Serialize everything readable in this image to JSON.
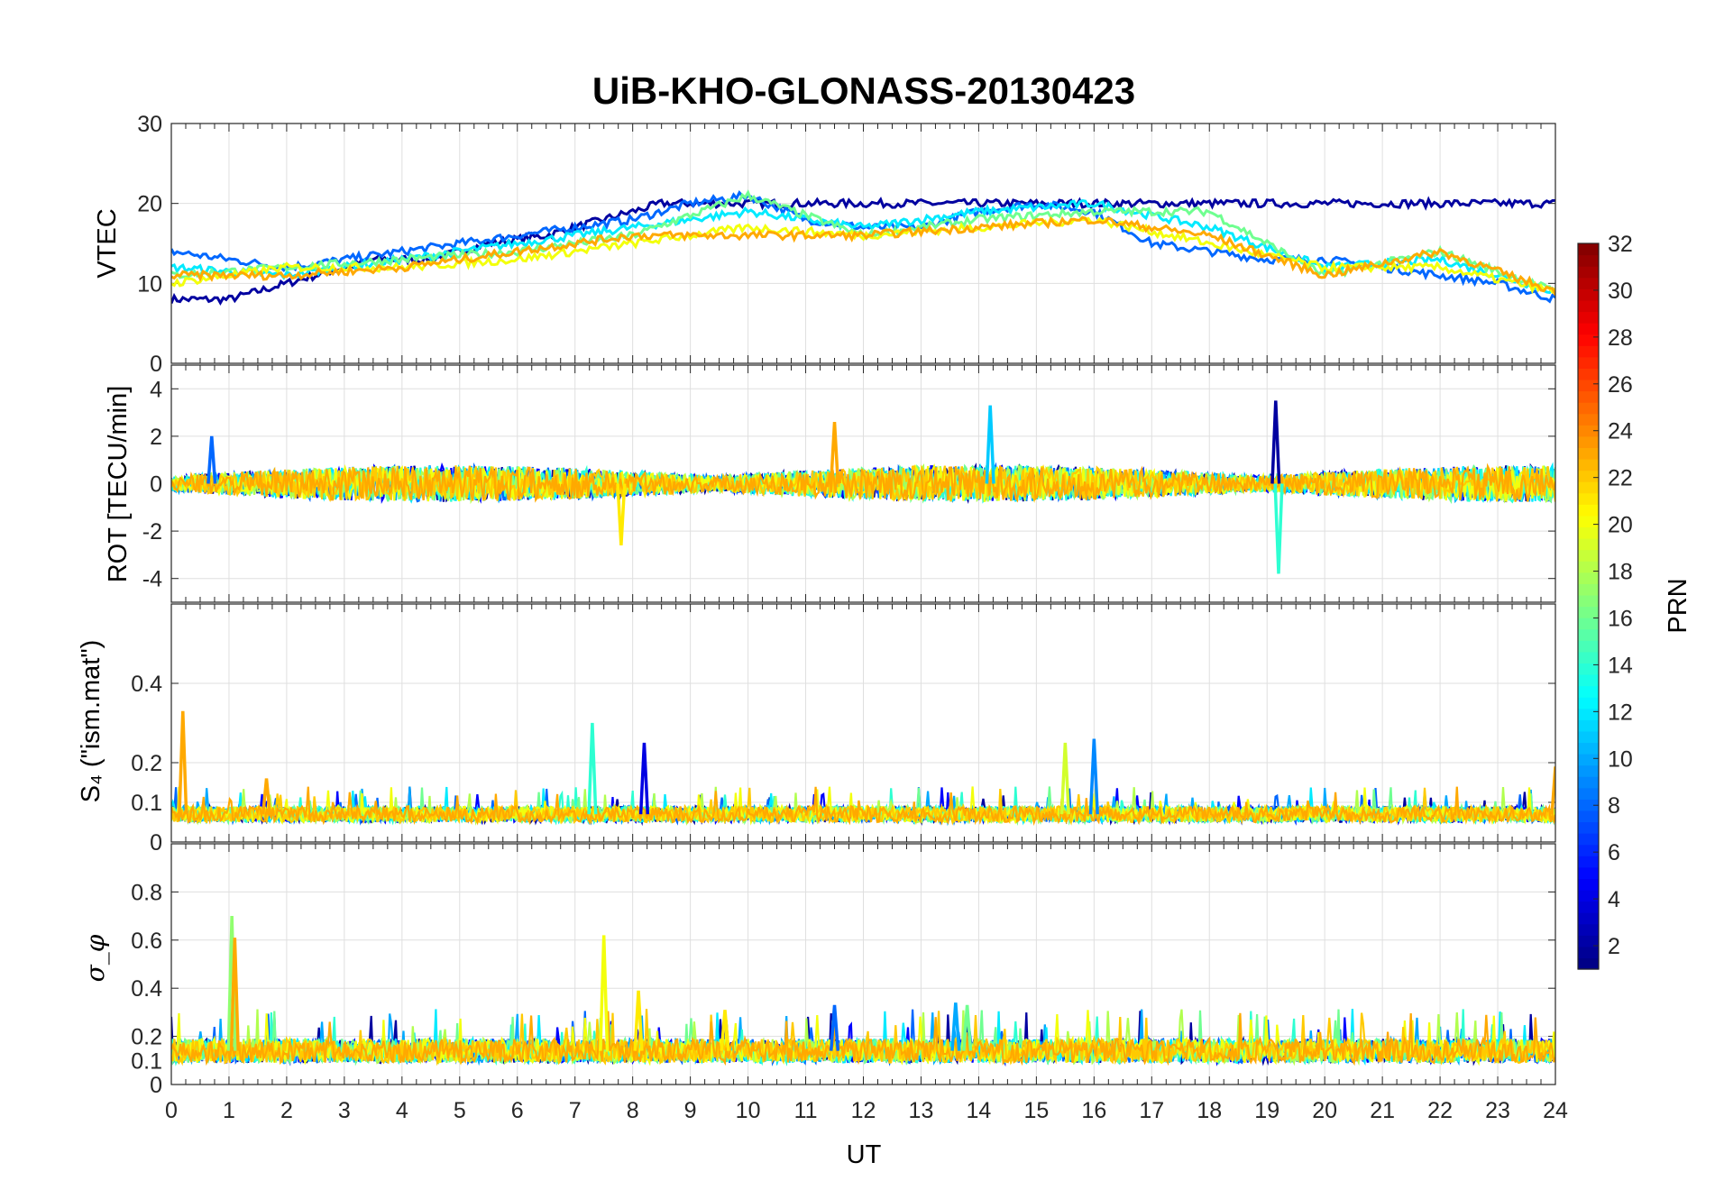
{
  "chart_data": {
    "type": "line",
    "title": "UiB-KHO-GLONASS-20130423",
    "xlabel": "UT",
    "xlim": [
      0,
      24
    ],
    "x_ticks": [
      "0",
      "1",
      "2",
      "3",
      "4",
      "5",
      "6",
      "7",
      "8",
      "9",
      "10",
      "11",
      "12",
      "13",
      "14",
      "15",
      "16",
      "17",
      "18",
      "19",
      "20",
      "21",
      "22",
      "23",
      "24"
    ],
    "colorbar": {
      "label": "PRN",
      "range": [
        1,
        32
      ],
      "ticks": [
        "2",
        "4",
        "6",
        "8",
        "10",
        "12",
        "14",
        "16",
        "18",
        "20",
        "22",
        "24",
        "26",
        "28",
        "30",
        "32"
      ],
      "colormap": "jet"
    },
    "panels": [
      {
        "ylabel": "VTEC",
        "ylim": [
          0,
          30
        ],
        "yticks": [
          "0",
          "10",
          "20",
          "30"
        ],
        "series": [
          {
            "prn": 2,
            "x": [
              1.0,
              1.5,
              2.5,
              3.5,
              4.5,
              5.5,
              6.5,
              7.5,
              8.5
            ],
            "y": [
              8,
              9,
              11,
              13,
              13,
              15,
              16,
              18,
              20
            ]
          },
          {
            "prn": 8,
            "x": [
              0,
              1,
              2,
              3,
              4,
              5,
              6,
              7,
              8,
              9,
              10,
              11,
              12,
              13,
              14,
              15,
              16,
              17,
              18,
              19,
              20,
              21,
              22,
              23,
              24
            ],
            "y": [
              14,
              13,
              12,
              13,
              14,
              15,
              16,
              17,
              18,
              20,
              21,
              18,
              17,
              17,
              19,
              20,
              19,
              15,
              14,
              13,
              13,
              12,
              11,
              10,
              8
            ]
          },
          {
            "prn": 12,
            "x": [
              0,
              2,
              4,
              6,
              8,
              10,
              12,
              14,
              16,
              18,
              20,
              22,
              24
            ],
            "y": [
              12,
              11,
              13,
              15,
              17,
              19,
              17,
              19,
              20,
              17,
              12,
              13,
              9
            ]
          },
          {
            "prn": 16,
            "x": [
              0,
              2,
              4,
              6,
              8,
              10,
              12,
              14,
              16,
              18,
              20,
              22,
              24
            ],
            "y": [
              11,
              12,
              13,
              14,
              16,
              21,
              16,
              18,
              19,
              19,
              11,
              14,
              9
            ]
          },
          {
            "prn": 20,
            "x": [
              0,
              2,
              4,
              6,
              8,
              10,
              12,
              14,
              16,
              18,
              20,
              22,
              24
            ],
            "y": [
              10,
              12,
              12,
              13,
              15,
              17,
              16,
              17,
              18,
              15,
              12,
              12,
              9
            ]
          },
          {
            "prn": 23,
            "x": [
              0,
              2,
              4,
              6,
              8,
              10,
              12,
              14,
              16,
              18,
              20,
              22,
              24
            ],
            "y": [
              11,
              11,
              12,
              14,
              16,
              16,
              16,
              17,
              18,
              16,
              11,
              14,
              9
            ]
          }
        ]
      },
      {
        "ylabel": "ROT [TECU/min]",
        "ylim": [
          -5,
          5
        ],
        "yticks": [
          "-4",
          "-2",
          "0",
          "2",
          "4"
        ],
        "spikes": [
          {
            "prn": 8,
            "x": 0.7,
            "y": 2.0
          },
          {
            "prn": 11,
            "x": 14.2,
            "y": 3.3
          },
          {
            "prn": 2,
            "x": 19.15,
            "y": 3.5
          },
          {
            "prn": 14,
            "x": 19.2,
            "y": -3.8
          },
          {
            "prn": 21,
            "x": 7.8,
            "y": -2.6
          },
          {
            "prn": 23,
            "x": 11.5,
            "y": 2.6
          }
        ]
      },
      {
        "ylabel": "S₄ (\"ism.mat\")",
        "ylim": [
          0,
          0.6
        ],
        "yticks": [
          "0",
          "0.1",
          "0.2",
          "0.4"
        ],
        "spikes": [
          {
            "prn": 23,
            "x": 0.2,
            "y": 0.33
          },
          {
            "prn": 23,
            "x": 1.65,
            "y": 0.16
          },
          {
            "prn": 14,
            "x": 7.3,
            "y": 0.3
          },
          {
            "prn": 4,
            "x": 8.2,
            "y": 0.25
          },
          {
            "prn": 19,
            "x": 15.5,
            "y": 0.25
          },
          {
            "prn": 9,
            "x": 16.0,
            "y": 0.26
          },
          {
            "prn": 23,
            "x": 24.0,
            "y": 0.19
          }
        ]
      },
      {
        "ylabel": "σ_φ",
        "ylim": [
          0,
          1
        ],
        "yticks": [
          "0",
          "0.1",
          "0.2",
          "0.4",
          "0.6",
          "0.8"
        ],
        "spikes": [
          {
            "prn": 17,
            "x": 1.05,
            "y": 0.7
          },
          {
            "prn": 23,
            "x": 1.1,
            "y": 0.61
          },
          {
            "prn": 20,
            "x": 7.5,
            "y": 0.62
          },
          {
            "prn": 21,
            "x": 8.1,
            "y": 0.39
          },
          {
            "prn": 21,
            "x": 9.6,
            "y": 0.31
          },
          {
            "prn": 8,
            "x": 11.5,
            "y": 0.33
          },
          {
            "prn": 10,
            "x": 13.6,
            "y": 0.34
          },
          {
            "prn": 16,
            "x": 13.8,
            "y": 0.33
          }
        ]
      }
    ]
  }
}
